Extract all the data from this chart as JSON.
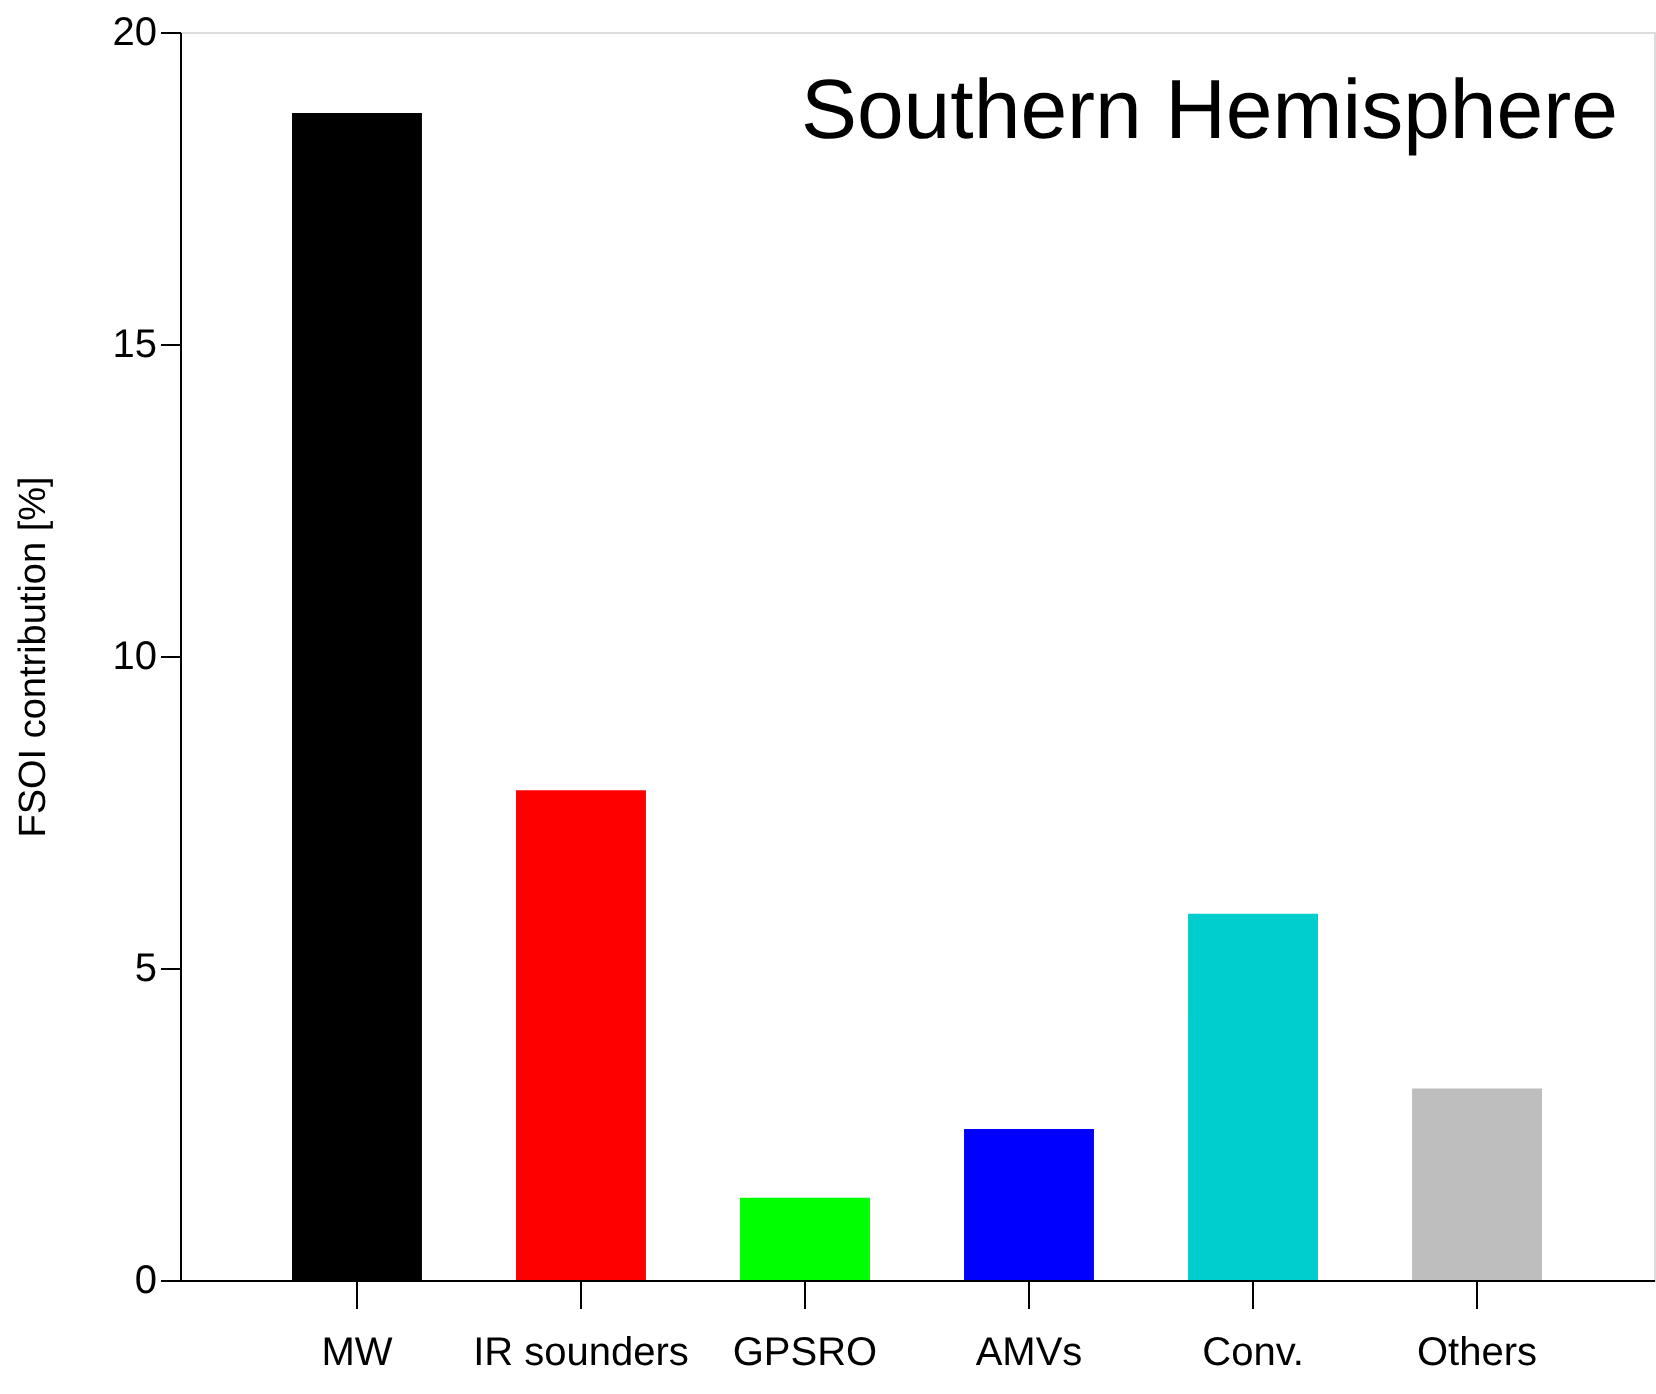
{
  "chart_data": {
    "type": "bar",
    "title": "Southern Hemisphere",
    "ylabel": "FSOI contribution [%]",
    "categories": [
      "MW",
      "IR sounders",
      "GPSRO",
      "AMVs",
      "Conv.",
      "Others"
    ],
    "values": [
      18.7,
      7.85,
      1.32,
      2.42,
      5.87,
      3.07
    ],
    "colors": [
      "#000000",
      "#ff0000",
      "#00ff00",
      "#0000ff",
      "#00cdcd",
      "#bebebe"
    ],
    "ylim": [
      0,
      20
    ],
    "yticks": [
      0,
      5,
      10,
      15,
      20
    ],
    "grid": false
  }
}
